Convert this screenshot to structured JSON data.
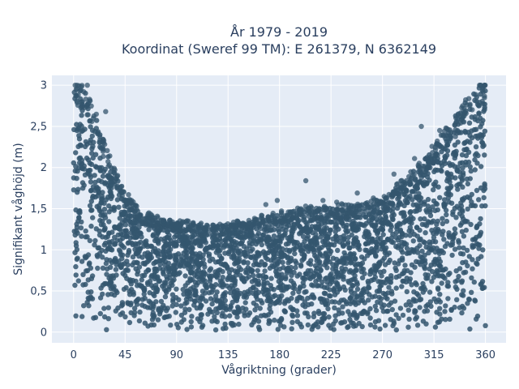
{
  "chart_data": {
    "type": "scatter",
    "title_line1": "År 1979 - 2019",
    "title_line2": "Koordinat (Sweref 99 TM): E 261379, N 6362149",
    "xlabel": "Vågriktning (grader)",
    "ylabel": "Signifikant våghöjd (m)",
    "xlim": [
      -19,
      378
    ],
    "ylim": [
      -0.13,
      3.12
    ],
    "x_ticks": [
      0,
      45,
      90,
      135,
      180,
      225,
      270,
      315,
      360
    ],
    "x_tick_labels": [
      "0",
      "45",
      "90",
      "135",
      "180",
      "225",
      "270",
      "315",
      "360"
    ],
    "y_ticks": [
      0,
      0.5,
      1,
      1.5,
      2,
      2.5,
      3
    ],
    "y_tick_labels": [
      "0",
      "0,5",
      "1",
      "1,5",
      "2",
      "2,5",
      "3"
    ],
    "grid": true,
    "marker_color": "#34566e",
    "plot_bg": "#e5ecf6",
    "envelope": [
      {
        "x": 0,
        "y": 3.0
      },
      {
        "x": 10,
        "y": 3.0
      },
      {
        "x": 20,
        "y": 2.6
      },
      {
        "x": 30,
        "y": 2.15
      },
      {
        "x": 45,
        "y": 1.68
      },
      {
        "x": 60,
        "y": 1.45
      },
      {
        "x": 75,
        "y": 1.38
      },
      {
        "x": 90,
        "y": 1.35
      },
      {
        "x": 110,
        "y": 1.3
      },
      {
        "x": 135,
        "y": 1.3
      },
      {
        "x": 160,
        "y": 1.38
      },
      {
        "x": 180,
        "y": 1.45
      },
      {
        "x": 200,
        "y": 1.5
      },
      {
        "x": 225,
        "y": 1.52
      },
      {
        "x": 250,
        "y": 1.55
      },
      {
        "x": 270,
        "y": 1.6
      },
      {
        "x": 285,
        "y": 1.8
      },
      {
        "x": 300,
        "y": 2.0
      },
      {
        "x": 315,
        "y": 2.25
      },
      {
        "x": 330,
        "y": 2.55
      },
      {
        "x": 345,
        "y": 2.85
      },
      {
        "x": 355,
        "y": 3.0
      },
      {
        "x": 360,
        "y": 3.0
      }
    ],
    "outliers": [
      {
        "x": 3,
        "y": 3.0
      },
      {
        "x": 12,
        "y": 3.0
      },
      {
        "x": 28,
        "y": 2.68
      },
      {
        "x": 38,
        "y": 1.75
      },
      {
        "x": 48,
        "y": 1.67
      },
      {
        "x": 143,
        "y": 1.35
      },
      {
        "x": 168,
        "y": 1.55
      },
      {
        "x": 178,
        "y": 1.6
      },
      {
        "x": 203,
        "y": 1.84
      },
      {
        "x": 218,
        "y": 1.6
      },
      {
        "x": 230,
        "y": 1.58
      },
      {
        "x": 248,
        "y": 1.69
      },
      {
        "x": 262,
        "y": 1.63
      },
      {
        "x": 268,
        "y": 1.57
      },
      {
        "x": 280,
        "y": 1.92
      },
      {
        "x": 289,
        "y": 1.82
      },
      {
        "x": 298,
        "y": 2.11
      },
      {
        "x": 304,
        "y": 2.5
      },
      {
        "x": 320,
        "y": 2.45
      },
      {
        "x": 356,
        "y": 3.0
      }
    ]
  }
}
